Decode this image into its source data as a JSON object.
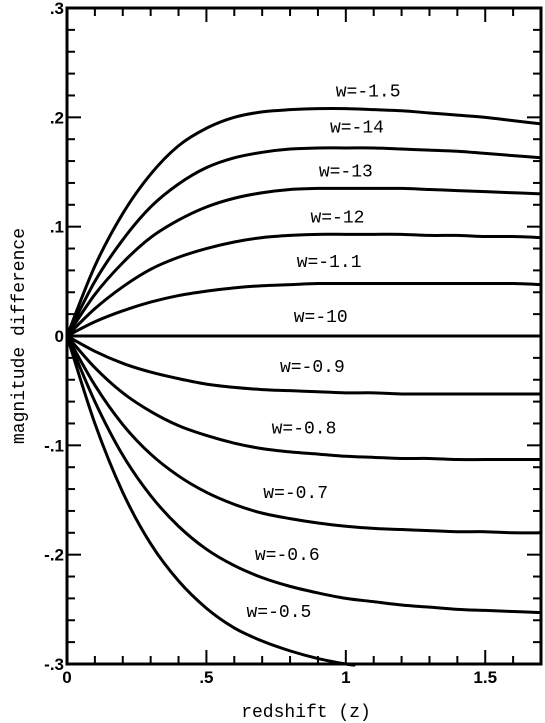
{
  "chart_data": {
    "type": "line",
    "title": "",
    "xlabel": "redshift (z)",
    "ylabel": "magnitude difference",
    "xlim": [
      0,
      1.7
    ],
    "ylim": [
      -0.3,
      0.3
    ],
    "x_ticks": [
      {
        "value": 0,
        "label": "0"
      },
      {
        "value": 0.5,
        "label": ".5"
      },
      {
        "value": 1,
        "label": "1"
      },
      {
        "value": 1.5,
        "label": "1.5"
      }
    ],
    "y_ticks": [
      {
        "value": 0.3,
        "label": ".3"
      },
      {
        "value": 0.2,
        "label": ".2"
      },
      {
        "value": 0.1,
        "label": ".1"
      },
      {
        "value": 0,
        "label": "0"
      },
      {
        "value": -0.1,
        "label": "-.1"
      },
      {
        "value": -0.2,
        "label": "-.2"
      },
      {
        "value": -0.3,
        "label": "-.3"
      }
    ],
    "grid": false,
    "legend": "none",
    "series": [
      {
        "name": "w=-1.5",
        "x": [
          0,
          0.1,
          0.2,
          0.3,
          0.4,
          0.5,
          0.6,
          0.7,
          0.8,
          0.9,
          1.0,
          1.1,
          1.2,
          1.3,
          1.4,
          1.5,
          1.6,
          1.7
        ],
        "y": [
          0,
          0.064,
          0.112,
          0.148,
          0.174,
          0.19,
          0.2,
          0.205,
          0.207,
          0.208,
          0.208,
          0.207,
          0.206,
          0.204,
          0.202,
          0.2,
          0.197,
          0.194
        ]
      },
      {
        "name": "w=-14",
        "x": [
          0,
          0.1,
          0.2,
          0.3,
          0.4,
          0.5,
          0.6,
          0.7,
          0.8,
          0.9,
          1.0,
          1.1,
          1.2,
          1.3,
          1.4,
          1.5,
          1.6,
          1.7
        ],
        "y": [
          0,
          0.05,
          0.088,
          0.118,
          0.139,
          0.154,
          0.163,
          0.168,
          0.171,
          0.172,
          0.172,
          0.172,
          0.171,
          0.17,
          0.169,
          0.167,
          0.165,
          0.163
        ]
      },
      {
        "name": "w=-13",
        "x": [
          0,
          0.1,
          0.2,
          0.3,
          0.4,
          0.5,
          0.6,
          0.7,
          0.8,
          0.9,
          1.0,
          1.1,
          1.2,
          1.3,
          1.4,
          1.5,
          1.6,
          1.7
        ],
        "y": [
          0,
          0.038,
          0.067,
          0.09,
          0.106,
          0.118,
          0.126,
          0.131,
          0.134,
          0.135,
          0.135,
          0.135,
          0.135,
          0.134,
          0.133,
          0.132,
          0.131,
          0.13
        ]
      },
      {
        "name": "w=-12",
        "x": [
          0,
          0.1,
          0.2,
          0.3,
          0.4,
          0.5,
          0.6,
          0.7,
          0.8,
          0.9,
          1.0,
          1.1,
          1.2,
          1.3,
          1.4,
          1.5,
          1.6,
          1.7
        ],
        "y": [
          0,
          0.025,
          0.045,
          0.061,
          0.072,
          0.08,
          0.086,
          0.09,
          0.092,
          0.093,
          0.093,
          0.093,
          0.093,
          0.092,
          0.092,
          0.091,
          0.091,
          0.09
        ]
      },
      {
        "name": "w=-1.1",
        "x": [
          0,
          0.1,
          0.2,
          0.3,
          0.4,
          0.5,
          0.6,
          0.7,
          0.8,
          0.9,
          1.0,
          1.1,
          1.2,
          1.3,
          1.4,
          1.5,
          1.6,
          1.7
        ],
        "y": [
          0,
          0.013,
          0.023,
          0.031,
          0.037,
          0.041,
          0.044,
          0.046,
          0.047,
          0.048,
          0.048,
          0.048,
          0.048,
          0.048,
          0.048,
          0.048,
          0.048,
          0.047
        ]
      },
      {
        "name": "w=-10",
        "x": [
          0,
          1.7
        ],
        "y": [
          0,
          0
        ]
      },
      {
        "name": "w=-0.9",
        "x": [
          0,
          0.1,
          0.2,
          0.3,
          0.4,
          0.5,
          0.6,
          0.7,
          0.8,
          0.9,
          1.0,
          1.1,
          1.2,
          1.3,
          1.4,
          1.5,
          1.6,
          1.7
        ],
        "y": [
          0,
          -0.014,
          -0.025,
          -0.033,
          -0.039,
          -0.044,
          -0.047,
          -0.049,
          -0.05,
          -0.051,
          -0.052,
          -0.052,
          -0.053,
          -0.053,
          -0.053,
          -0.053,
          -0.053,
          -0.053
        ]
      },
      {
        "name": "w=-0.8",
        "x": [
          0,
          0.1,
          0.2,
          0.3,
          0.4,
          0.5,
          0.6,
          0.7,
          0.8,
          0.9,
          1.0,
          1.1,
          1.2,
          1.3,
          1.4,
          1.5,
          1.6,
          1.7
        ],
        "y": [
          0,
          -0.029,
          -0.052,
          -0.069,
          -0.082,
          -0.091,
          -0.098,
          -0.103,
          -0.106,
          -0.108,
          -0.11,
          -0.111,
          -0.112,
          -0.112,
          -0.113,
          -0.113,
          -0.113,
          -0.113
        ]
      },
      {
        "name": "w=-0.7",
        "x": [
          0,
          0.1,
          0.2,
          0.3,
          0.4,
          0.5,
          0.6,
          0.7,
          0.8,
          0.9,
          1.0,
          1.1,
          1.2,
          1.3,
          1.4,
          1.5,
          1.6,
          1.7
        ],
        "y": [
          0,
          -0.045,
          -0.081,
          -0.108,
          -0.128,
          -0.143,
          -0.154,
          -0.162,
          -0.167,
          -0.171,
          -0.174,
          -0.176,
          -0.177,
          -0.178,
          -0.179,
          -0.179,
          -0.18,
          -0.18
        ]
      },
      {
        "name": "w=-0.6",
        "x": [
          0,
          0.1,
          0.2,
          0.3,
          0.4,
          0.5,
          0.6,
          0.7,
          0.8,
          0.9,
          1.0,
          1.1,
          1.2,
          1.3,
          1.4,
          1.5,
          1.6,
          1.7
        ],
        "y": [
          0,
          -0.06,
          -0.109,
          -0.146,
          -0.174,
          -0.195,
          -0.21,
          -0.221,
          -0.229,
          -0.235,
          -0.24,
          -0.243,
          -0.246,
          -0.248,
          -0.25,
          -0.251,
          -0.252,
          -0.253
        ]
      },
      {
        "name": "w=-0.5",
        "x": [
          0,
          0.1,
          0.2,
          0.3,
          0.4,
          0.5,
          0.6,
          0.7,
          0.8,
          0.9,
          1.0,
          1.03
        ],
        "y": [
          0,
          -0.08,
          -0.143,
          -0.19,
          -0.224,
          -0.249,
          -0.267,
          -0.279,
          -0.288,
          -0.295,
          -0.3,
          -0.301
        ]
      }
    ],
    "label_positions": [
      {
        "series": "w=-1.5",
        "x": 1.08,
        "y": 0.219
      },
      {
        "series": "w=-14",
        "x": 1.04,
        "y": 0.186
      },
      {
        "series": "w=-13",
        "x": 1.0,
        "y": 0.146
      },
      {
        "series": "w=-12",
        "x": 0.97,
        "y": 0.104
      },
      {
        "series": "w=-1.1",
        "x": 0.94,
        "y": 0.063
      },
      {
        "series": "w=-10",
        "x": 0.91,
        "y": 0.013
      },
      {
        "series": "w=-0.9",
        "x": 0.88,
        "y": -0.033
      },
      {
        "series": "w=-0.8",
        "x": 0.85,
        "y": -0.089
      },
      {
        "series": "w=-0.7",
        "x": 0.82,
        "y": -0.148
      },
      {
        "series": "w=-0.6",
        "x": 0.79,
        "y": -0.205
      },
      {
        "series": "w=-0.5",
        "x": 0.76,
        "y": -0.257
      }
    ]
  }
}
